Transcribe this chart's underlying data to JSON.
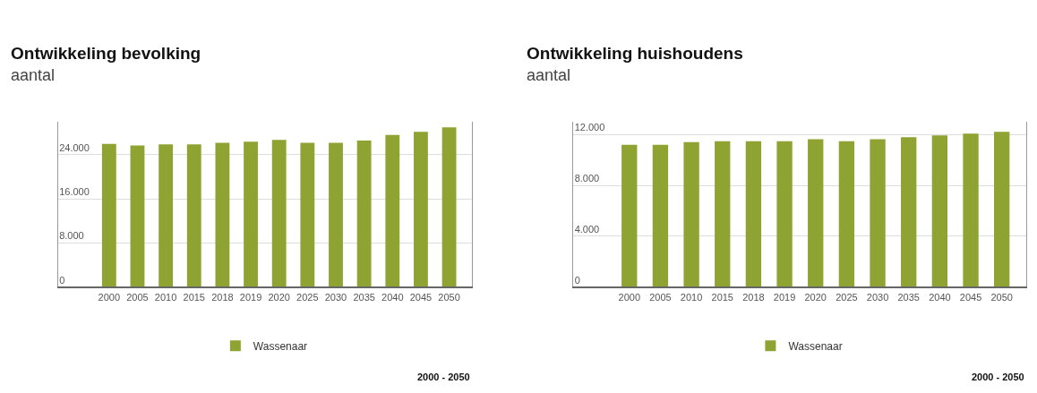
{
  "chart_data": [
    {
      "type": "bar",
      "title": "Ontwikkeling bevolking",
      "subtitle": "aantal",
      "categories": [
        "2000",
        "2005",
        "2010",
        "2015",
        "2018",
        "2019",
        "2020",
        "2025",
        "2030",
        "2035",
        "2040",
        "2045",
        "2050"
      ],
      "ylim": [
        0,
        30000
      ],
      "series": [
        {
          "name": "Wassenaar",
          "color": "#8fa332",
          "values": [
            26000,
            25700,
            25900,
            25900,
            26200,
            26400,
            26700,
            26200,
            26200,
            26600,
            27600,
            28200,
            29000
          ]
        }
      ],
      "yticks": [
        {
          "value": 0,
          "label": "0"
        },
        {
          "value": 8000,
          "label": "8.000"
        },
        {
          "value": 16000,
          "label": "16.000"
        },
        {
          "value": 24000,
          "label": "24.000"
        }
      ],
      "grid": "y",
      "legend": "bottom",
      "annotations": [
        "2000 - 2050"
      ]
    },
    {
      "type": "bar",
      "title": "Ontwikkeling huishoudens",
      "subtitle": "aantal",
      "categories": [
        "2000",
        "2005",
        "2010",
        "2015",
        "2018",
        "2019",
        "2020",
        "2025",
        "2030",
        "2035",
        "2040",
        "2045",
        "2050"
      ],
      "ylim": [
        0,
        13000
      ],
      "series": [
        {
          "name": "Wassenaar",
          "color": "#8fa332",
          "values": [
            11190,
            11190,
            11400,
            11480,
            11480,
            11480,
            11640,
            11480,
            11640,
            11790,
            11930,
            12070,
            12210
          ]
        }
      ],
      "yticks": [
        {
          "value": 0,
          "label": "0"
        },
        {
          "value": 4000,
          "label": "4.000"
        },
        {
          "value": 8000,
          "label": "8.000"
        },
        {
          "value": 12000,
          "label": "12.000"
        }
      ],
      "grid": "y",
      "legend": "bottom",
      "annotations": [
        "2000 - 2050"
      ]
    }
  ]
}
